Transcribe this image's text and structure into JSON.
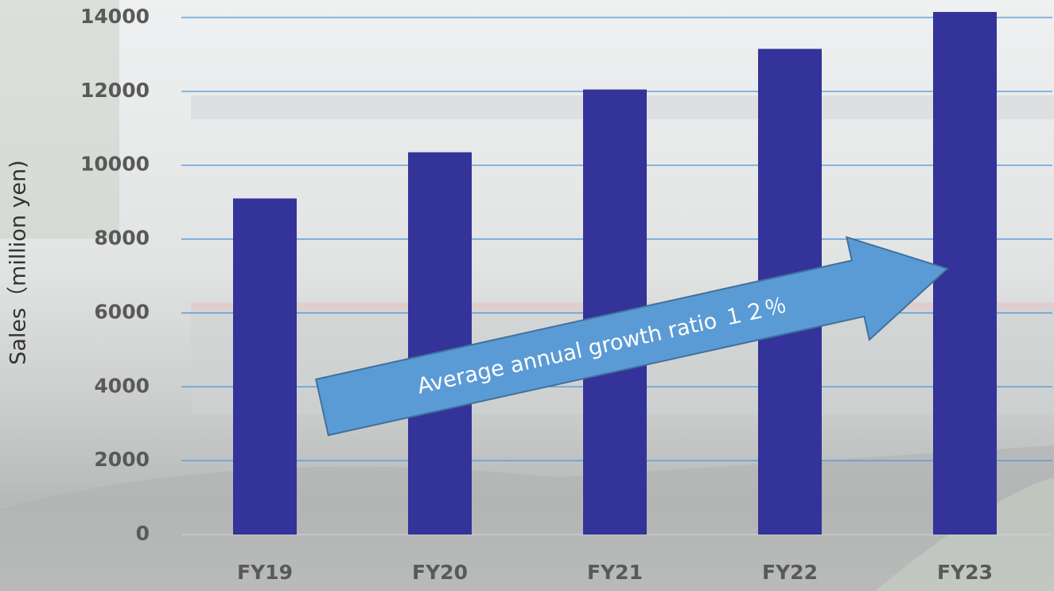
{
  "chart_data": {
    "type": "bar",
    "y_label": "Sales（million yen)",
    "annotation": "Average annual growth ratio １２％",
    "categories": [
      "FY19",
      "FY20",
      "FY21",
      "FY22",
      "FY23"
    ],
    "values": [
      9100,
      10350,
      12050,
      13150,
      14150
    ],
    "color": "#333399",
    "ylim": [
      0,
      14000
    ],
    "yticks": [
      0,
      2000,
      4000,
      6000,
      8000,
      10000,
      12000,
      14000
    ],
    "grid": true
  }
}
